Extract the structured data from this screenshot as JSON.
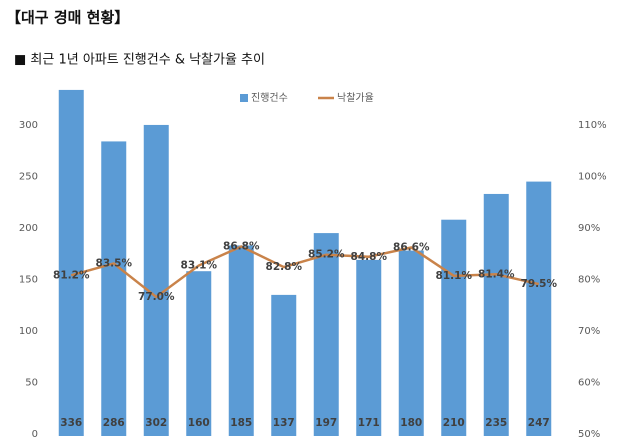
{
  "chart_data": {
    "type": "bar_line",
    "title": "【대구 경매 현황】",
    "subtitle": "■ 최근 1년 아파트 진행건수 & 낙찰가율 추이",
    "series": [
      {
        "name": "진행건수",
        "type": "bar",
        "color": "#5b9bd5",
        "values": [
          336,
          286,
          302,
          160,
          185,
          137,
          197,
          171,
          180,
          210,
          235,
          247
        ]
      },
      {
        "name": "낙찰가율",
        "type": "line",
        "axis": "y2",
        "color": "#c9834a",
        "values": [
          81.2,
          83.5,
          77.0,
          83.1,
          86.8,
          82.8,
          85.2,
          84.8,
          86.6,
          81.1,
          81.4,
          79.5
        ],
        "value_labels": [
          "81.2%",
          "83.5%",
          "77.0%",
          "83.1%",
          "86.8%",
          "82.8%",
          "85.2%",
          "84.8%",
          "86.6%",
          "81.1%",
          "81.4%",
          "79.5%"
        ]
      }
    ],
    "ylim": [
      0,
      350
    ],
    "yticks": [
      0,
      50,
      100,
      150,
      200,
      250,
      300
    ],
    "y2lim": [
      50,
      120
    ],
    "y2ticks": [
      {
        "value": 50,
        "label": "50%"
      },
      {
        "value": 60,
        "label": "60%"
      },
      {
        "value": 70,
        "label": "70%"
      },
      {
        "value": 80,
        "label": "80%"
      },
      {
        "value": 90,
        "label": "90%"
      },
      {
        "value": 100,
        "label": "100%"
      },
      {
        "value": 110,
        "label": "110%"
      }
    ],
    "legend": "top"
  }
}
